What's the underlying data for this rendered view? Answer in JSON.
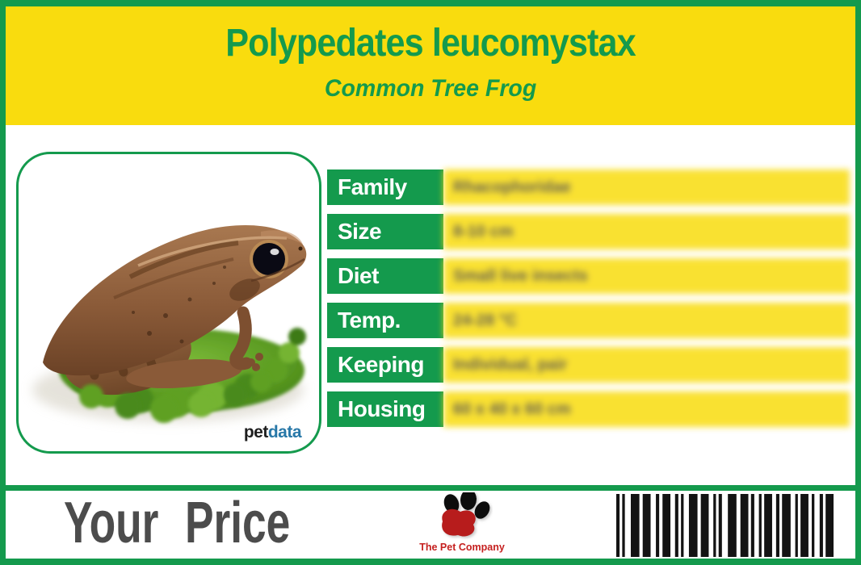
{
  "header": {
    "title": "Polypedates leucomystax",
    "subtitle": "Common Tree Frog"
  },
  "photo": {
    "description": "Brown common tree frog sitting on green moss, facing right",
    "watermark_pet": "pet",
    "watermark_data": "data"
  },
  "specs": {
    "rows": [
      {
        "label": "Family",
        "value": "Rhacophoridae",
        "blurred": true
      },
      {
        "label": "Size",
        "value": "8-10 cm",
        "blurred": true
      },
      {
        "label": "Diet",
        "value": "Small live insects",
        "blurred": true
      },
      {
        "label": "Temp.",
        "value": "24-28 °C",
        "blurred": true
      },
      {
        "label": "Keeping",
        "value": "Individual, pair",
        "blurred": true
      },
      {
        "label": "Housing",
        "value": "60 x 40 x 60 cm",
        "blurred": true
      }
    ]
  },
  "footer": {
    "price_label": "Your Price",
    "brand_name": "The Pet Company",
    "barcode": {
      "pattern": [
        [
          5,
          4
        ],
        [
          4,
          9
        ],
        [
          13,
          5
        ],
        [
          12,
          8
        ],
        [
          5,
          5
        ],
        [
          12,
          7
        ],
        [
          5,
          4
        ],
        [
          4,
          8
        ],
        [
          13,
          5
        ],
        [
          12,
          7
        ],
        [
          4,
          4
        ],
        [
          5,
          9
        ],
        [
          13,
          6
        ],
        [
          12,
          4
        ],
        [
          5,
          7
        ],
        [
          4,
          4
        ],
        [
          12,
          6
        ],
        [
          5,
          4
        ],
        [
          13,
          7
        ],
        [
          4,
          4
        ],
        [
          12,
          5
        ],
        [
          4,
          8
        ],
        [
          5,
          4
        ],
        [
          12,
          0
        ]
      ]
    }
  },
  "colors": {
    "green": "#149a4d",
    "yellow": "#f9dc0e",
    "price_text": "#4c4c4c",
    "brand_red": "#c5201f",
    "petdata_blue": "#2878a8"
  }
}
